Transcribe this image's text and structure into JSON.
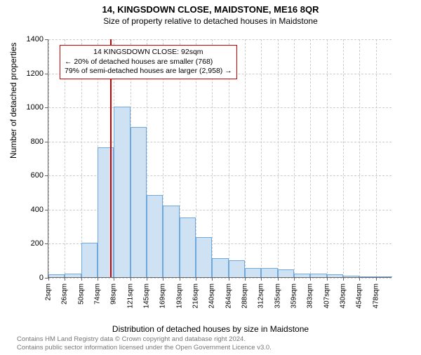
{
  "header": {
    "title": "14, KINGSDOWN CLOSE, MAIDSTONE, ME16 8QR",
    "subtitle": "Size of property relative to detached houses in Maidstone"
  },
  "axis": {
    "ylabel": "Number of detached properties",
    "xlabel": "Distribution of detached houses by size in Maidstone"
  },
  "chart": {
    "type": "histogram",
    "ylim": [
      0,
      1400
    ],
    "yticks": [
      0,
      200,
      400,
      600,
      800,
      1000,
      1200,
      1400
    ],
    "xticks": [
      "2sqm",
      "26sqm",
      "50sqm",
      "74sqm",
      "98sqm",
      "121sqm",
      "145sqm",
      "169sqm",
      "193sqm",
      "216sqm",
      "240sqm",
      "264sqm",
      "288sqm",
      "312sqm",
      "335sqm",
      "359sqm",
      "383sqm",
      "407sqm",
      "430sqm",
      "454sqm",
      "478sqm"
    ],
    "bars": [
      15,
      20,
      200,
      760,
      1000,
      880,
      480,
      420,
      350,
      235,
      110,
      100,
      55,
      55,
      45,
      20,
      20,
      15,
      10,
      5,
      5
    ],
    "bar_fill": "#cfe2f3",
    "bar_stroke": "#6fa8dc",
    "background_color": "#ffffff",
    "grid_color": "#cccccc",
    "marker_value": 92,
    "marker_color": "#cc0000",
    "label_fontsize": 12,
    "tick_fontsize": 11,
    "xtick_fontsize": 10
  },
  "info_box": {
    "line1": "14 KINGSDOWN CLOSE: 92sqm",
    "line2": "← 20% of detached houses are smaller (768)",
    "line3": "79% of semi-detached houses are larger (2,958) →"
  },
  "footnote": {
    "line1": "Contains HM Land Registry data © Crown copyright and database right 2024.",
    "line2": "Contains public sector information licensed under the Open Government Licence v3.0."
  }
}
